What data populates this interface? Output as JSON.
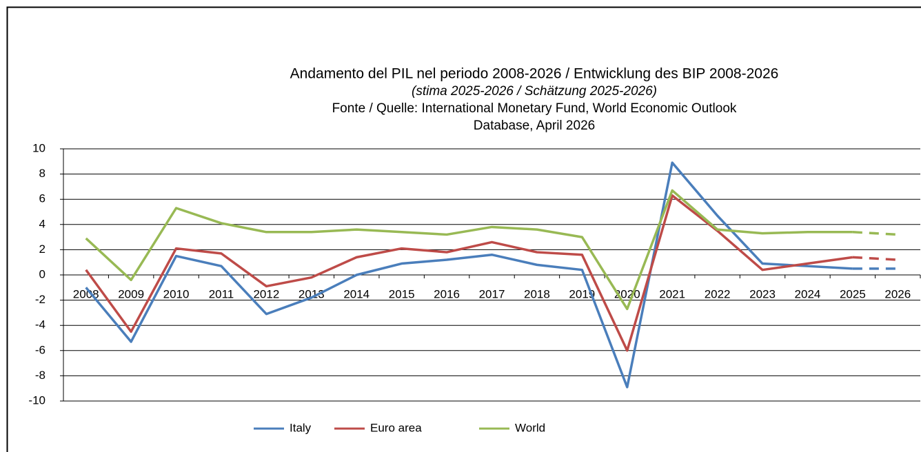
{
  "chart_data": {
    "type": "line",
    "title": "Andamento del PIL nel periodo 2008-2026 / Entwicklung des BIP 2008-2026",
    "subtitle": "(stima 2025-2026 / Schätzung 2025-2026)",
    "source": [
      "Fonte / Quelle: International Monetary Fund, World Economic Outlook",
      "Database, April 2026"
    ],
    "categories": [
      "2008",
      "2009",
      "2010",
      "2011",
      "2012",
      "2013",
      "2014",
      "2015",
      "2016",
      "2017",
      "2018",
      "2019",
      "2020",
      "2021",
      "2022",
      "2023",
      "2024",
      "2025",
      "2026"
    ],
    "series": [
      {
        "name": "Italy",
        "color": "#4a7ebb",
        "values": [
          -1.0,
          -5.3,
          1.5,
          0.7,
          -3.1,
          -1.8,
          0.0,
          0.9,
          1.2,
          1.6,
          0.8,
          0.4,
          -8.9,
          8.9,
          4.7,
          0.9,
          0.7,
          0.5,
          0.5
        ]
      },
      {
        "name": "Euro area",
        "color": "#be4b48",
        "values": [
          0.4,
          -4.5,
          2.1,
          1.7,
          -0.9,
          -0.2,
          1.4,
          2.1,
          1.8,
          2.6,
          1.8,
          1.6,
          -6.0,
          6.3,
          3.5,
          0.4,
          0.9,
          1.4,
          1.2
        ]
      },
      {
        "name": "World",
        "color": "#98b954",
        "values": [
          2.9,
          -0.4,
          5.3,
          4.1,
          3.4,
          3.4,
          3.6,
          3.4,
          3.2,
          3.8,
          3.6,
          3.0,
          -2.7,
          6.7,
          3.6,
          3.3,
          3.4,
          3.4,
          3.2
        ]
      }
    ],
    "dashed_from": 17,
    "ylim": [
      -10,
      10
    ],
    "yticks": [
      -10,
      -8,
      -6,
      -4,
      -2,
      0,
      2,
      4,
      6,
      8,
      10
    ],
    "grid": true,
    "legend": "bottom"
  }
}
